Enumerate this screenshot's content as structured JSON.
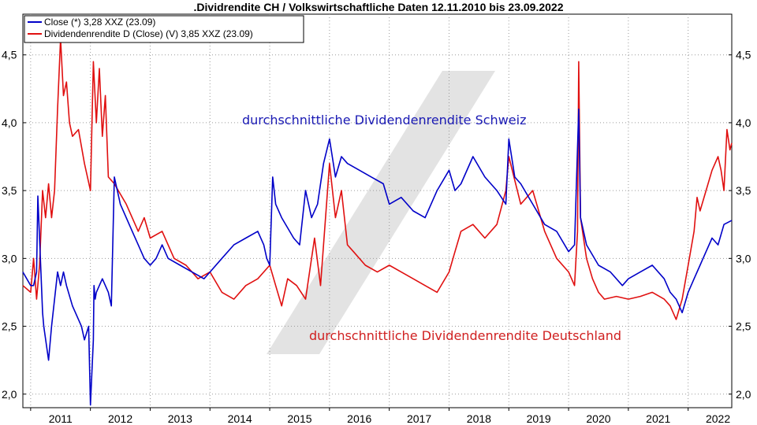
{
  "chart_data": {
    "type": "line",
    "title": ".Dividrendite CH / Volkswirtschaftliche Daten 12.11.2010 bis 23.09.2022",
    "xlabel": "",
    "ylabel": "",
    "xlim": [
      2010.87,
      2022.73
    ],
    "ylim": [
      1.9,
      4.8
    ],
    "y_ticks": [
      2.0,
      2.5,
      3.0,
      3.5,
      4.0,
      4.5
    ],
    "y_tick_labels": [
      "2,0",
      "2,5",
      "3,0",
      "3,5",
      "4,0",
      "4,5"
    ],
    "x_tick_labels": [
      "2011",
      "2012",
      "2013",
      "2014",
      "2015",
      "2016",
      "2017",
      "2018",
      "2019",
      "2020",
      "2021",
      "2022"
    ],
    "grid": true,
    "legend_position": "top-left",
    "legend": [
      "Close (*) 3,28 XXZ (23.09)",
      "Dividendenrendite D (Close) (V) 3,85 XXZ (23.09)"
    ],
    "annotations": [
      {
        "text": "durchschnittliche Dividendenrendite Schweiz",
        "color": "#1a1ab4"
      },
      {
        "text": "durchschnittliche Dividendenrendite Deutschland",
        "color": "#d02020"
      }
    ],
    "series": [
      {
        "color": "#0000c8",
        "x": [
          2010.87,
          2011.0,
          2011.05,
          2011.1,
          2011.12,
          2011.2,
          2011.22,
          2011.3,
          2011.35,
          2011.45,
          2011.5,
          2011.55,
          2011.6,
          2011.7,
          2011.75,
          2011.85,
          2011.9,
          2011.97,
          2012.0,
          2012.05,
          2012.06,
          2012.08,
          2012.1,
          2012.2,
          2012.3,
          2012.35,
          2012.4,
          2012.5,
          2012.6,
          2012.7,
          2012.8,
          2012.9,
          2013.0,
          2013.1,
          2013.2,
          2013.3,
          2013.5,
          2013.7,
          2013.9,
          2014.0,
          2014.2,
          2014.4,
          2014.6,
          2014.8,
          2014.9,
          2014.95,
          2015.0,
          2015.05,
          2015.1,
          2015.2,
          2015.4,
          2015.5,
          2015.6,
          2015.7,
          2015.8,
          2015.9,
          2016.0,
          2016.1,
          2016.2,
          2016.3,
          2016.5,
          2016.7,
          2016.9,
          2017.0,
          2017.2,
          2017.4,
          2017.6,
          2017.8,
          2018.0,
          2018.1,
          2018.2,
          2018.4,
          2018.6,
          2018.8,
          2018.95,
          2019.0,
          2019.1,
          2019.2,
          2019.4,
          2019.6,
          2019.8,
          2020.0,
          2020.1,
          2020.17,
          2020.2,
          2020.3,
          2020.5,
          2020.7,
          2020.9,
          2021.0,
          2021.2,
          2021.4,
          2021.6,
          2021.7,
          2021.8,
          2021.9,
          2022.0,
          2022.1,
          2022.2,
          2022.3,
          2022.4,
          2022.5,
          2022.6,
          2022.73
        ],
        "values": [
          2.9,
          2.8,
          2.8,
          2.9,
          3.46,
          2.6,
          2.5,
          2.25,
          2.5,
          2.9,
          2.8,
          2.9,
          2.8,
          2.65,
          2.6,
          2.5,
          2.4,
          2.5,
          1.92,
          2.4,
          2.8,
          2.7,
          2.75,
          2.85,
          2.75,
          2.65,
          3.6,
          3.4,
          3.3,
          3.2,
          3.1,
          3.0,
          2.95,
          3.0,
          3.1,
          3.0,
          2.95,
          2.9,
          2.85,
          2.9,
          3.0,
          3.1,
          3.15,
          3.2,
          3.1,
          3.0,
          2.95,
          3.6,
          3.4,
          3.3,
          3.15,
          3.1,
          3.5,
          3.3,
          3.4,
          3.7,
          3.88,
          3.6,
          3.75,
          3.7,
          3.65,
          3.6,
          3.55,
          3.4,
          3.45,
          3.35,
          3.3,
          3.5,
          3.65,
          3.5,
          3.55,
          3.75,
          3.6,
          3.5,
          3.4,
          3.88,
          3.6,
          3.55,
          3.4,
          3.25,
          3.2,
          3.05,
          3.1,
          4.1,
          3.3,
          3.1,
          2.95,
          2.9,
          2.8,
          2.85,
          2.9,
          2.95,
          2.85,
          2.75,
          2.7,
          2.6,
          2.75,
          2.85,
          2.95,
          3.05,
          3.15,
          3.1,
          3.25,
          3.28
        ]
      },
      {
        "color": "#e01010",
        "x": [
          2010.87,
          2011.0,
          2011.05,
          2011.1,
          2011.15,
          2011.2,
          2011.25,
          2011.3,
          2011.35,
          2011.4,
          2011.45,
          2011.5,
          2011.55,
          2011.6,
          2011.65,
          2011.7,
          2011.8,
          2011.9,
          2012.0,
          2012.05,
          2012.1,
          2012.15,
          2012.2,
          2012.25,
          2012.3,
          2012.4,
          2012.6,
          2012.8,
          2012.9,
          2013.0,
          2013.2,
          2013.4,
          2013.6,
          2013.8,
          2014.0,
          2014.2,
          2014.4,
          2014.6,
          2014.8,
          2015.0,
          2015.1,
          2015.2,
          2015.3,
          2015.45,
          2015.6,
          2015.75,
          2015.85,
          2016.0,
          2016.1,
          2016.2,
          2016.3,
          2016.4,
          2016.6,
          2016.8,
          2017.0,
          2017.2,
          2017.4,
          2017.6,
          2017.8,
          2018.0,
          2018.1,
          2018.2,
          2018.4,
          2018.6,
          2018.8,
          2018.95,
          2019.0,
          2019.2,
          2019.4,
          2019.6,
          2019.8,
          2020.0,
          2020.1,
          2020.15,
          2020.17,
          2020.2,
          2020.3,
          2020.4,
          2020.5,
          2020.6,
          2020.8,
          2021.0,
          2021.2,
          2021.4,
          2021.6,
          2021.7,
          2021.8,
          2021.9,
          2022.0,
          2022.1,
          2022.15,
          2022.2,
          2022.3,
          2022.4,
          2022.5,
          2022.55,
          2022.6,
          2022.65,
          2022.7,
          2022.73
        ],
        "values": [
          2.8,
          2.75,
          3.0,
          2.7,
          2.95,
          3.5,
          3.3,
          3.55,
          3.3,
          3.5,
          4.1,
          4.62,
          4.2,
          4.3,
          4.0,
          3.9,
          3.95,
          3.7,
          3.5,
          4.45,
          4.0,
          4.4,
          3.9,
          4.2,
          3.6,
          3.55,
          3.4,
          3.2,
          3.3,
          3.15,
          3.2,
          3.0,
          2.95,
          2.85,
          2.9,
          2.75,
          2.7,
          2.8,
          2.85,
          2.95,
          2.8,
          2.65,
          2.85,
          2.8,
          2.7,
          3.15,
          2.8,
          3.7,
          3.3,
          3.5,
          3.1,
          3.05,
          2.95,
          2.9,
          2.95,
          2.9,
          2.85,
          2.8,
          2.75,
          2.9,
          3.05,
          3.2,
          3.25,
          3.15,
          3.25,
          3.5,
          3.75,
          3.4,
          3.5,
          3.2,
          3.0,
          2.9,
          2.8,
          3.2,
          4.45,
          3.3,
          3.0,
          2.85,
          2.75,
          2.7,
          2.72,
          2.7,
          2.72,
          2.75,
          2.7,
          2.65,
          2.55,
          2.7,
          2.95,
          3.2,
          3.45,
          3.35,
          3.5,
          3.65,
          3.75,
          3.65,
          3.5,
          3.95,
          3.8,
          3.85
        ]
      }
    ]
  }
}
